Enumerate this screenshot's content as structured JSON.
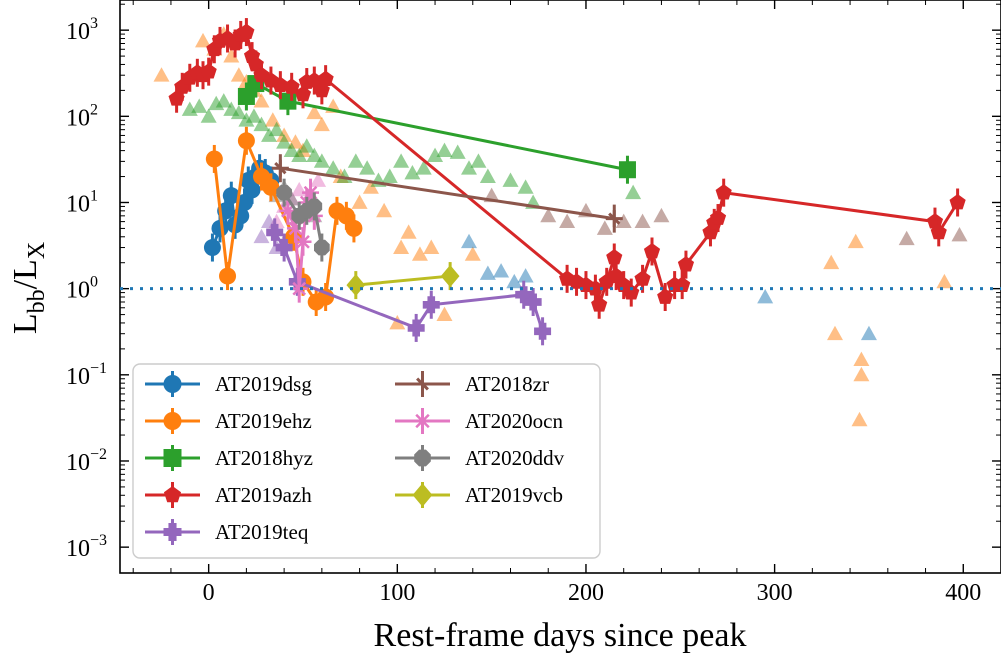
{
  "chart_data": {
    "type": "scatter",
    "xlabel": "Rest-frame days since peak",
    "ylabel_main": "L",
    "ylabel_sub1": "bb",
    "ylabel_sep": "/L",
    "ylabel_sub2": "X",
    "xlim": [
      -47,
      420
    ],
    "ylim_log10": [
      -3.3,
      3.35
    ],
    "yscale": "log",
    "x_ticks": [
      0,
      100,
      200,
      300,
      400
    ],
    "x_tick_labels": [
      "0",
      "100",
      "200",
      "300",
      "400"
    ],
    "y_ticks_exp": [
      -3,
      -2,
      -1,
      0,
      1,
      2,
      3
    ],
    "y_tick_labels": [
      {
        "base": "10",
        "exp": "−3"
      },
      {
        "base": "10",
        "exp": "−2"
      },
      {
        "base": "10",
        "exp": "−1"
      },
      {
        "base": "10",
        "exp": "0"
      },
      {
        "base": "10",
        "exp": "1"
      },
      {
        "base": "10",
        "exp": "2"
      },
      {
        "base": "10",
        "exp": "3"
      }
    ],
    "reference_line": {
      "y": 1.0,
      "style": "dotted",
      "color": "#1f77b4"
    },
    "legend_position": "lower-left",
    "series": [
      {
        "name": "AT2019dsg",
        "color": "#1f77b4",
        "marker": "circle",
        "points": [
          [
            2,
            3.0
          ],
          [
            6,
            5
          ],
          [
            9,
            8
          ],
          [
            12,
            12
          ],
          [
            14,
            5.5
          ],
          [
            17,
            7
          ],
          [
            19,
            10
          ],
          [
            21,
            18
          ],
          [
            23,
            14
          ],
          [
            25,
            20
          ],
          [
            27,
            25
          ],
          [
            30,
            22
          ],
          [
            33,
            18
          ]
        ]
      },
      {
        "name": "AT2019ehz",
        "color": "#ff7f0e",
        "marker": "circle",
        "points": [
          [
            3,
            32
          ],
          [
            10,
            1.4
          ],
          [
            20,
            52
          ],
          [
            28,
            20
          ],
          [
            33,
            15
          ],
          [
            45,
            4
          ],
          [
            50,
            1.2
          ],
          [
            57,
            0.7
          ],
          [
            62,
            0.8
          ],
          [
            68,
            8
          ],
          [
            73,
            7
          ],
          [
            77,
            5
          ]
        ]
      },
      {
        "name": "AT2018hyz",
        "color": "#2ca02c",
        "marker": "square",
        "points": [
          [
            20,
            170
          ],
          [
            25,
            240
          ],
          [
            42,
            150
          ],
          [
            222,
            24
          ]
        ]
      },
      {
        "name": "AT2019azh",
        "color": "#d62728",
        "marker": "pentagon",
        "points": [
          [
            -17,
            160
          ],
          [
            -14,
            220
          ],
          [
            -10,
            280
          ],
          [
            -6,
            320
          ],
          [
            -3,
            300
          ],
          [
            0,
            330
          ],
          [
            3,
            600
          ],
          [
            6,
            750
          ],
          [
            10,
            800
          ],
          [
            14,
            700
          ],
          [
            17,
            880
          ],
          [
            20,
            950
          ],
          [
            23,
            500
          ],
          [
            25,
            400
          ],
          [
            28,
            300
          ],
          [
            33,
            260
          ],
          [
            38,
            230
          ],
          [
            44,
            220
          ],
          [
            50,
            180
          ],
          [
            52,
            250
          ],
          [
            56,
            260
          ],
          [
            60,
            200
          ],
          [
            62,
            270
          ],
          [
            190,
            1.3
          ],
          [
            195,
            1.2
          ],
          [
            200,
            1.1
          ],
          [
            205,
            1.0
          ],
          [
            207,
            0.65
          ],
          [
            211,
            1.2
          ],
          [
            215,
            2.3
          ],
          [
            216,
            1.4
          ],
          [
            220,
            1.1
          ],
          [
            224,
            0.9
          ],
          [
            230,
            1.3
          ],
          [
            235,
            2.7
          ],
          [
            242,
            0.8
          ],
          [
            247,
            1.1
          ],
          [
            251,
            1.1
          ],
          [
            253,
            1.9
          ],
          [
            266,
            4.5
          ],
          [
            268,
            5.8
          ],
          [
            270,
            6.6
          ],
          [
            273,
            13
          ],
          [
            385,
            6
          ],
          [
            387,
            4.5
          ],
          [
            397,
            10
          ]
        ]
      },
      {
        "name": "AT2019teq",
        "color": "#9467bd",
        "marker": "plus",
        "points": [
          [
            35,
            4.5
          ],
          [
            40,
            3.0
          ],
          [
            47,
            1.2
          ],
          [
            110,
            0.35
          ],
          [
            118,
            0.65
          ],
          [
            167,
            0.85
          ],
          [
            172,
            0.7
          ],
          [
            177,
            0.32
          ]
        ]
      },
      {
        "name": "AT2018zr",
        "color": "#8c564b",
        "marker": "star",
        "points": [
          [
            38,
            25
          ],
          [
            215,
            6.5
          ]
        ]
      },
      {
        "name": "AT2020ocn",
        "color": "#e377c2",
        "marker": "asterisk",
        "points": [
          [
            42,
            8
          ],
          [
            46,
            5
          ],
          [
            48,
            1.0
          ],
          [
            50,
            3.5
          ],
          [
            52,
            10
          ],
          [
            54,
            13
          ],
          [
            56,
            7
          ]
        ]
      },
      {
        "name": "AT2020ddv",
        "color": "#7f7f7f",
        "marker": "octagon",
        "points": [
          [
            40,
            13
          ],
          [
            48,
            7
          ],
          [
            52,
            8
          ],
          [
            56,
            9
          ],
          [
            60,
            3
          ]
        ]
      },
      {
        "name": "AT2019vcb",
        "color": "#bcbd22",
        "marker": "diamond",
        "points": [
          [
            78,
            1.1
          ],
          [
            128,
            1.4
          ]
        ]
      }
    ],
    "upper_limits": [
      {
        "color": "#ff7f0e",
        "points": [
          [
            -25,
            300
          ],
          [
            -3,
            750
          ],
          [
            3,
            600
          ],
          [
            8,
            900
          ],
          [
            12,
            500
          ],
          [
            16,
            300
          ],
          [
            20,
            250
          ],
          [
            24,
            200
          ],
          [
            28,
            150
          ],
          [
            34,
            90
          ],
          [
            40,
            60
          ],
          [
            46,
            50
          ],
          [
            50,
            40
          ],
          [
            56,
            110
          ],
          [
            60,
            80
          ],
          [
            66,
            130
          ],
          [
            70,
            20
          ],
          [
            80,
            10
          ],
          [
            86,
            15
          ],
          [
            93,
            8
          ],
          [
            100,
            0.4
          ],
          [
            102,
            3
          ],
          [
            106,
            4.5
          ],
          [
            112,
            2.5
          ],
          [
            118,
            3.0
          ],
          [
            125,
            0.5
          ],
          [
            140,
            2.5
          ],
          [
            330,
            2.0
          ],
          [
            332,
            0.3
          ],
          [
            343,
            3.5
          ],
          [
            346,
            0.15
          ],
          [
            346,
            0.1
          ],
          [
            345,
            0.03
          ],
          [
            390,
            1.2
          ]
        ]
      },
      {
        "color": "#2ca02c",
        "points": [
          [
            -10,
            120
          ],
          [
            -5,
            130
          ],
          [
            0,
            100
          ],
          [
            4,
            140
          ],
          [
            8,
            150
          ],
          [
            12,
            120
          ],
          [
            16,
            110
          ],
          [
            20,
            90
          ],
          [
            24,
            100
          ],
          [
            28,
            80
          ],
          [
            32,
            60
          ],
          [
            36,
            70
          ],
          [
            40,
            50
          ],
          [
            44,
            40
          ],
          [
            48,
            35
          ],
          [
            52,
            45
          ],
          [
            56,
            35
          ],
          [
            60,
            30
          ],
          [
            66,
            25
          ],
          [
            72,
            20
          ],
          [
            78,
            30
          ],
          [
            84,
            25
          ],
          [
            90,
            18
          ],
          [
            96,
            20
          ],
          [
            102,
            30
          ],
          [
            108,
            22
          ],
          [
            114,
            25
          ],
          [
            120,
            35
          ],
          [
            125,
            40
          ],
          [
            132,
            38
          ],
          [
            138,
            25
          ],
          [
            143,
            30
          ],
          [
            148,
            20
          ],
          [
            160,
            18
          ],
          [
            168,
            15
          ],
          [
            172,
            10
          ],
          [
            225,
            13
          ]
        ]
      },
      {
        "color": "#1f77b4",
        "points": [
          [
            138,
            3.5
          ],
          [
            148,
            1.5
          ],
          [
            155,
            1.6
          ],
          [
            162,
            1.2
          ],
          [
            168,
            1.4
          ],
          [
            295,
            0.8
          ],
          [
            350,
            0.3
          ]
        ]
      },
      {
        "color": "#8c564b",
        "points": [
          [
            150,
            12
          ],
          [
            180,
            7
          ],
          [
            190,
            6
          ],
          [
            200,
            8
          ],
          [
            210,
            5
          ],
          [
            220,
            6
          ],
          [
            230,
            6
          ],
          [
            240,
            7
          ],
          [
            370,
            3.8
          ],
          [
            398,
            4.2
          ]
        ]
      },
      {
        "color": "#e377c2",
        "points": [
          [
            36,
            6
          ],
          [
            40,
            9
          ],
          [
            44,
            11
          ],
          [
            48,
            14
          ],
          [
            52,
            9
          ],
          [
            58,
            18
          ]
        ]
      },
      {
        "color": "#7f7f7f",
        "points": [
          [
            36,
            12
          ],
          [
            40,
            15
          ],
          [
            44,
            11
          ],
          [
            48,
            7
          ],
          [
            56,
            7
          ]
        ]
      },
      {
        "color": "#9467bd",
        "points": [
          [
            28,
            4
          ],
          [
            32,
            6
          ],
          [
            36,
            3
          ],
          [
            40,
            3.5
          ]
        ]
      }
    ]
  }
}
